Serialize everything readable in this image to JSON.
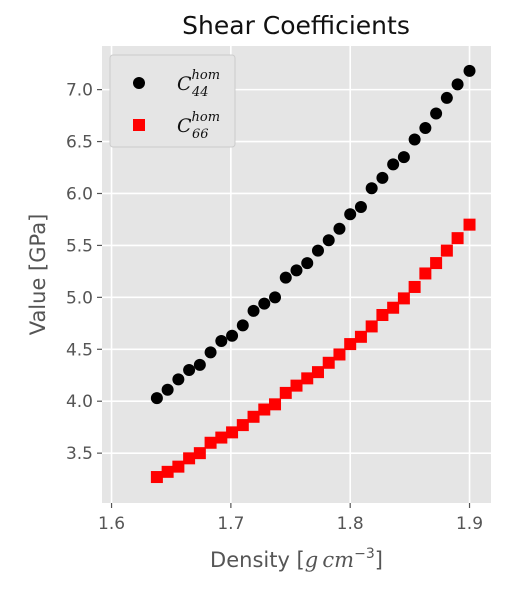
{
  "chart_data": {
    "type": "scatter",
    "title": "Shear Coefficients",
    "xlabel": "Density [g cm⁻³]",
    "ylabel": "Value [GPa]",
    "xlim": [
      1.592,
      1.918
    ],
    "ylim": [
      3.02,
      7.42
    ],
    "xticks": [
      1.6,
      1.7,
      1.8,
      1.9
    ],
    "xtick_labels": [
      "1.6",
      "1.7",
      "1.8",
      "1.9"
    ],
    "yticks": [
      3.5,
      4.0,
      4.5,
      5.0,
      5.5,
      6.0,
      6.5,
      7.0
    ],
    "ytick_labels": [
      "3.5",
      "4.0",
      "4.5",
      "5.0",
      "5.5",
      "6.0",
      "6.5",
      "7.0"
    ],
    "grid": true,
    "legend_position": "top-left",
    "x": [
      1.638,
      1.647,
      1.656,
      1.665,
      1.674,
      1.683,
      1.692,
      1.701,
      1.71,
      1.719,
      1.728,
      1.737,
      1.746,
      1.755,
      1.764,
      1.773,
      1.782,
      1.791,
      1.8,
      1.809,
      1.818,
      1.827,
      1.836,
      1.845,
      1.854,
      1.863,
      1.872,
      1.881,
      1.89,
      1.9
    ],
    "series": [
      {
        "name": "C_44^hom",
        "label": {
          "base": "C",
          "sub": "44",
          "sup": "hom"
        },
        "marker": "circle",
        "color": "#000000",
        "values": [
          4.03,
          4.11,
          4.21,
          4.3,
          4.35,
          4.47,
          4.58,
          4.63,
          4.73,
          4.87,
          4.94,
          5.0,
          5.19,
          5.26,
          5.33,
          5.45,
          5.55,
          5.66,
          5.8,
          5.87,
          6.05,
          6.15,
          6.28,
          6.35,
          6.52,
          6.63,
          6.77,
          6.92,
          7.05,
          7.18
        ]
      },
      {
        "name": "C_66^hom",
        "label": {
          "base": "C",
          "sub": "66",
          "sup": "hom"
        },
        "marker": "square",
        "color": "#ff0000",
        "values": [
          3.27,
          3.32,
          3.37,
          3.45,
          3.5,
          3.6,
          3.65,
          3.7,
          3.77,
          3.85,
          3.92,
          3.97,
          4.08,
          4.15,
          4.22,
          4.28,
          4.37,
          4.45,
          4.55,
          4.62,
          4.72,
          4.83,
          4.9,
          4.99,
          5.1,
          5.23,
          5.33,
          5.45,
          5.57,
          5.7
        ]
      }
    ],
    "colors": {
      "panel_bg": "#e5e5e5",
      "grid": "#ffffff"
    }
  }
}
